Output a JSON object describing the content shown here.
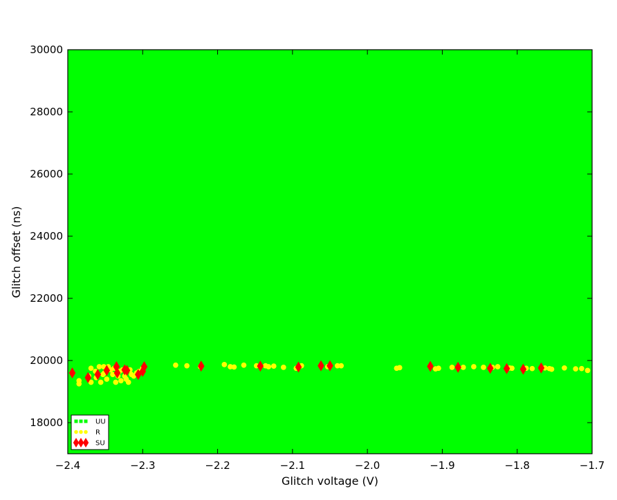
{
  "chart_data": {
    "type": "scatter",
    "title": "",
    "xlabel": "Glitch voltage (V)",
    "ylabel": "Glitch offset (ns)",
    "xlim": [
      -2.4,
      -1.7
    ],
    "ylim": [
      17000,
      30000
    ],
    "x_ticks": [
      {
        "value": -2.4,
        "label": "−2.4"
      },
      {
        "value": -2.3,
        "label": "−2.3"
      },
      {
        "value": -2.2,
        "label": "−2.2"
      },
      {
        "value": -2.1,
        "label": "−2.1"
      },
      {
        "value": -2.0,
        "label": "−2.0"
      },
      {
        "value": -1.9,
        "label": "−1.9"
      },
      {
        "value": -1.8,
        "label": "−1.8"
      },
      {
        "value": -1.7,
        "label": "−1.7"
      }
    ],
    "y_ticks": [
      {
        "value": 18000,
        "label": "18000"
      },
      {
        "value": 20000,
        "label": "20000"
      },
      {
        "value": 22000,
        "label": "22000"
      },
      {
        "value": 24000,
        "label": "24000"
      },
      {
        "value": 26000,
        "label": "26000"
      },
      {
        "value": 28000,
        "label": "28000"
      },
      {
        "value": 30000,
        "label": "30000"
      }
    ],
    "grid": false,
    "legend_position": "lower-left",
    "series": [
      {
        "name": "UU",
        "color": "#00ff00",
        "marker": "square",
        "fills_plot_area": true,
        "points": []
      },
      {
        "name": "R",
        "color": "#ffff00",
        "marker": "circle",
        "points": [
          [
            -2.385,
            19250
          ],
          [
            -2.385,
            19350
          ],
          [
            -2.372,
            19500
          ],
          [
            -2.369,
            19300
          ],
          [
            -2.369,
            19750
          ],
          [
            -2.363,
            19650
          ],
          [
            -2.362,
            19450
          ],
          [
            -2.358,
            19800
          ],
          [
            -2.356,
            19300
          ],
          [
            -2.353,
            19550
          ],
          [
            -2.352,
            19800
          ],
          [
            -2.351,
            19600
          ],
          [
            -2.348,
            19400
          ],
          [
            -2.346,
            19800
          ],
          [
            -2.343,
            19700
          ],
          [
            -2.34,
            19550
          ],
          [
            -2.338,
            19750
          ],
          [
            -2.336,
            19300
          ],
          [
            -2.333,
            19500
          ],
          [
            -2.331,
            19650
          ],
          [
            -2.329,
            19350
          ],
          [
            -2.327,
            19700
          ],
          [
            -2.324,
            19500
          ],
          [
            -2.322,
            19400
          ],
          [
            -2.319,
            19300
          ],
          [
            -2.317,
            19700
          ],
          [
            -2.315,
            19550
          ],
          [
            -2.312,
            19500
          ],
          [
            -2.308,
            19600
          ],
          [
            -2.305,
            19650
          ],
          [
            -2.3,
            19750
          ],
          [
            -2.256,
            19850
          ],
          [
            -2.241,
            19830
          ],
          [
            -2.223,
            19800
          ],
          [
            -2.191,
            19870
          ],
          [
            -2.183,
            19800
          ],
          [
            -2.178,
            19790
          ],
          [
            -2.165,
            19850
          ],
          [
            -2.148,
            19830
          ],
          [
            -2.136,
            19830
          ],
          [
            -2.132,
            19800
          ],
          [
            -2.125,
            19820
          ],
          [
            -2.112,
            19780
          ],
          [
            -2.095,
            19750
          ],
          [
            -2.088,
            19830
          ],
          [
            -2.053,
            19800
          ],
          [
            -2.04,
            19830
          ],
          [
            -2.035,
            19830
          ],
          [
            -1.961,
            19750
          ],
          [
            -1.957,
            19770
          ],
          [
            -1.909,
            19730
          ],
          [
            -1.905,
            19750
          ],
          [
            -1.887,
            19780
          ],
          [
            -1.872,
            19780
          ],
          [
            -1.858,
            19800
          ],
          [
            -1.845,
            19780
          ],
          [
            -1.833,
            19780
          ],
          [
            -1.826,
            19800
          ],
          [
            -1.81,
            19760
          ],
          [
            -1.807,
            19750
          ],
          [
            -1.788,
            19750
          ],
          [
            -1.78,
            19740
          ],
          [
            -1.763,
            19760
          ],
          [
            -1.757,
            19740
          ],
          [
            -1.754,
            19720
          ],
          [
            -1.737,
            19760
          ],
          [
            -1.722,
            19730
          ],
          [
            -1.714,
            19740
          ],
          [
            -1.706,
            19680
          ]
        ]
      },
      {
        "name": "SU",
        "color": "#ff0000",
        "marker": "diamond",
        "points": [
          [
            -2.394,
            19600
          ],
          [
            -2.373,
            19450
          ],
          [
            -2.36,
            19550
          ],
          [
            -2.348,
            19680
          ],
          [
            -2.335,
            19800
          ],
          [
            -2.334,
            19600
          ],
          [
            -2.324,
            19700
          ],
          [
            -2.321,
            19680
          ],
          [
            -2.306,
            19550
          ],
          [
            -2.3,
            19650
          ],
          [
            -2.298,
            19800
          ],
          [
            -2.222,
            19820
          ],
          [
            -2.143,
            19820
          ],
          [
            -2.092,
            19790
          ],
          [
            -2.062,
            19830
          ],
          [
            -2.05,
            19830
          ],
          [
            -1.916,
            19810
          ],
          [
            -1.879,
            19780
          ],
          [
            -1.836,
            19750
          ],
          [
            -1.814,
            19740
          ],
          [
            -1.792,
            19720
          ],
          [
            -1.768,
            19760
          ]
        ]
      }
    ]
  }
}
